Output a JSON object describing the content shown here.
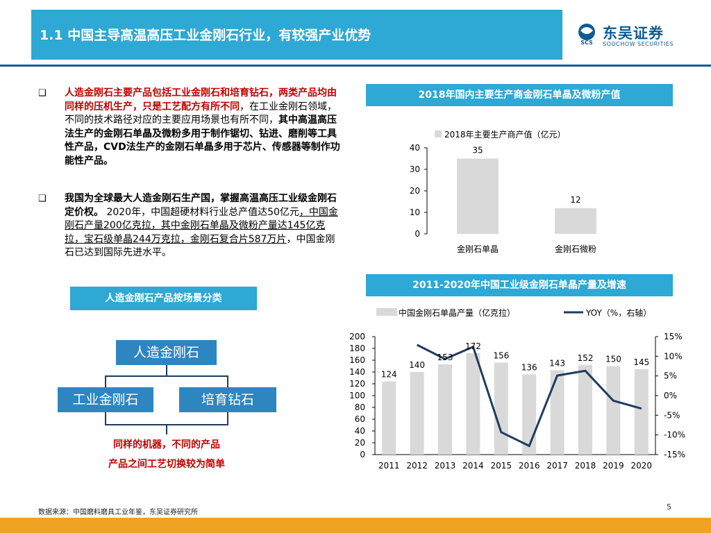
{
  "header": {
    "title": "1.1 中国主导高温高压工业金刚石行业，有较强产业优势",
    "logo_name": "东吴证券",
    "logo_mark_text": "SCS",
    "logo_sub": "SOOCHOW SECURITIES"
  },
  "bullets": [
    {
      "mark": "❑",
      "line1_red": "人造金刚石主要产品包括工业金刚石和培育钻石，两类产品均由同样的压机生产，只是工艺配方有所不同",
      "line1_normal": "，在工业金刚石领域，不同的技术路径对应的主要应用场景也有所不同，",
      "line1_bold": "其中高温高压法生产的金刚石单晶及微粉多用于制作锯切、钻进、磨削等工具性产品，CVD法生产的金刚石单晶多用于芯片、传感器等制作功能性产品。"
    },
    {
      "mark": "❑",
      "bold": "我国为全球最大人造金刚石生产国，掌握高温高压工业级金刚石定价权。",
      "normal1": "2020年，中国超硬材料行业总产值达50亿元",
      "underlined": "，中国金刚石产量200亿克拉，其中金刚石单晶及微粉产量达145亿克拉，宝石级单晶244万克拉，金刚石复合片587万片",
      "normal2": "，中国金刚石已达到国际先进水平。"
    }
  ],
  "classification": {
    "label": "人造金刚石产品按场景分类",
    "root": "人造金刚石",
    "child_left": "工业金刚石",
    "child_right": "培育钻石",
    "note1": "同样的机器，不同的产品",
    "note2": "产品之间工艺切换较为简单"
  },
  "chart1": {
    "header": "2018年国内主要生产商金刚石单晶及微粉产值",
    "legend": "2018年主要生产商产值（亿元）",
    "bar_color": "#d9d9d9"
  },
  "chart2": {
    "header": "2011-2020年中国工业级金刚石单晶产量及增速",
    "legend_bar": "中国金刚石单晶产量（亿克拉）",
    "legend_line": "YOY（%，右轴）",
    "bar_color": "#d9d9d9",
    "line_color": "#1f3b5e"
  },
  "chart_data": [
    {
      "type": "bar",
      "title": "2018年国内主要生产商金刚石单晶及微粉产值",
      "categories": [
        "金刚石单晶",
        "金刚石微粉"
      ],
      "series": [
        {
          "name": "2018年主要生产商产值（亿元）",
          "values": [
            35,
            12
          ]
        }
      ],
      "ylim": [
        0,
        40
      ],
      "yticks": [
        0,
        10,
        20,
        30,
        40
      ],
      "grid": false,
      "legend": "top-left"
    },
    {
      "type": "bar",
      "title": "2011-2020年中国工业级金刚石单晶产量及增速",
      "categories": [
        "2011",
        "2012",
        "2013",
        "2014",
        "2015",
        "2016",
        "2017",
        "2018",
        "2019",
        "2020"
      ],
      "series": [
        {
          "name": "中国金刚石单晶产量（亿克拉）",
          "type": "bar",
          "values": [
            124,
            140,
            153,
            172,
            156,
            136,
            143,
            152,
            150,
            145
          ]
        },
        {
          "name": "YOY（%，右轴）",
          "type": "line",
          "axis": "right",
          "values": [
            null,
            12.9,
            9.3,
            12.4,
            -9.3,
            -12.8,
            5.1,
            6.3,
            -1.3,
            -3.3
          ]
        }
      ],
      "ylim": [
        0,
        200
      ],
      "yticks": [
        0,
        20,
        40,
        60,
        80,
        100,
        120,
        140,
        160,
        180,
        200
      ],
      "y2lim": [
        -15,
        15
      ],
      "y2ticks": [
        -15,
        -10,
        -5,
        0,
        5,
        10,
        15
      ],
      "y2tick_labels": [
        "-15%",
        "-10%",
        "-5%",
        "0%",
        "5%",
        "10%",
        "15%"
      ],
      "grid": false,
      "legend": "top"
    }
  ],
  "footer": {
    "source": "数据来源：中国磨料磨具工业年鉴，东吴证券研究所",
    "page": "5"
  }
}
